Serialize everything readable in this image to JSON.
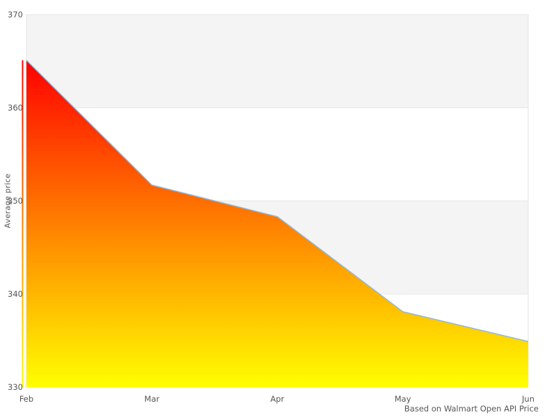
{
  "chart_data": {
    "type": "area",
    "categories": [
      "Feb",
      "Mar",
      "Apr",
      "May",
      "Jun"
    ],
    "values": [
      365.1,
      351.7,
      348.3,
      338.1,
      334.9
    ],
    "title": "",
    "xlabel": "",
    "ylabel": "Average price",
    "ylim": [
      330,
      370
    ],
    "ytick_step": 10,
    "yticks": [
      330,
      340,
      350,
      360,
      370
    ],
    "caption": "Based on Walmart Open API Price",
    "legend": "none",
    "grid": "alternating-horizontal-bands",
    "colors": {
      "area_gradient_top": "#ff0000",
      "area_gradient_bottom": "#ffff00",
      "line": "#8fb7dc",
      "band_fill": "#f4f4f4",
      "gridline": "#e6e6e6",
      "axis_text": "#555555",
      "background": "#ffffff"
    }
  }
}
